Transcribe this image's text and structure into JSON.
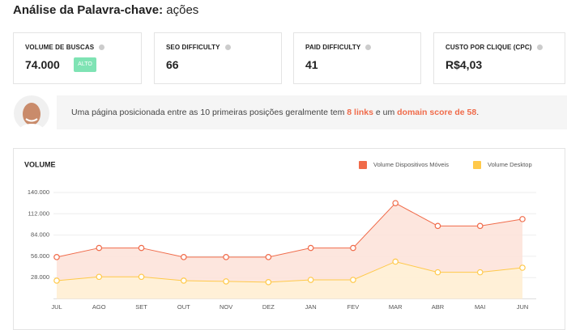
{
  "header": {
    "title": "Análise da Palavra-chave:",
    "keyword": "ações"
  },
  "cards": [
    {
      "label": "VOLUME DE BUSCAS",
      "value": "74.000",
      "badge": "ALTO"
    },
    {
      "label": "SEO DIFFICULTY",
      "value": "66"
    },
    {
      "label": "PAID DIFFICULTY",
      "value": "41"
    },
    {
      "label": "CUSTO POR CLIQUE (CPC)",
      "value": "R$4,03"
    }
  ],
  "tip": {
    "parts": [
      "Uma página posicionada entre as 10 primeiras posições geralmente tem ",
      "8 links",
      " e um ",
      "domain score de 58",
      "."
    ]
  },
  "chart_data": {
    "type": "line",
    "title": "VOLUME",
    "categories": [
      "JUL",
      "AGO",
      "SET",
      "OUT",
      "NOV",
      "DEZ",
      "JAN",
      "FEV",
      "MAR",
      "ABR",
      "MAI",
      "JUN"
    ],
    "series": [
      {
        "name": "Volume Dispositivos Móveis",
        "color": "#f06b4a",
        "fill": "#fde2d8",
        "values": [
          55000,
          67000,
          67000,
          55000,
          55000,
          55000,
          67000,
          67000,
          126000,
          96000,
          96000,
          105000
        ]
      },
      {
        "name": "Volume Desktop",
        "color": "#ffc94a",
        "fill": "#fff1d6",
        "values": [
          24000,
          29000,
          29000,
          24000,
          23000,
          22000,
          25000,
          25000,
          49000,
          35000,
          35000,
          41000
        ]
      }
    ],
    "ylim": [
      0,
      140000
    ],
    "yticks": [
      {
        "value": 28000,
        "label": "28.000"
      },
      {
        "value": 56000,
        "label": "56.000"
      },
      {
        "value": 84000,
        "label": "84.000"
      },
      {
        "value": 112000,
        "label": "112.000"
      },
      {
        "value": 140000,
        "label": "140.000"
      }
    ],
    "grid": true
  }
}
